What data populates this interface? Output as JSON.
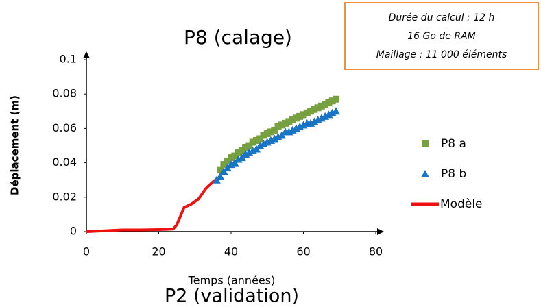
{
  "chart_data": {
    "type": "scatter",
    "title": "P8 (calage)",
    "x_label": "Temps (années)",
    "y_label": "Déplacement (m)",
    "xlim": [
      0,
      80
    ],
    "xticks": [
      0,
      20,
      40,
      60,
      80
    ],
    "ylim": [
      0,
      0.1
    ],
    "yticks": [
      0,
      0.02,
      0.04,
      0.06,
      0.08,
      0.1
    ],
    "annotations": [
      "Durée du calcul : 12 h",
      "16 Go de RAM",
      "Maillage : 11 000 éléments"
    ],
    "series": [
      {
        "name": "P8 a",
        "color": "#77a040",
        "marker": "square",
        "x": [
          37,
          38,
          39,
          40,
          41,
          42,
          43,
          44,
          45,
          46,
          47,
          48,
          49,
          50,
          51,
          52,
          53,
          54,
          55,
          56,
          57,
          58,
          59,
          60,
          61,
          62,
          63,
          64,
          65,
          66,
          67,
          68,
          69
        ],
        "values": [
          0.036,
          0.039,
          0.041,
          0.043,
          0.044,
          0.046,
          0.047,
          0.049,
          0.05,
          0.052,
          0.053,
          0.054,
          0.056,
          0.057,
          0.058,
          0.059,
          0.061,
          0.062,
          0.063,
          0.064,
          0.065,
          0.066,
          0.067,
          0.068,
          0.069,
          0.07,
          0.071,
          0.072,
          0.073,
          0.074,
          0.075,
          0.076,
          0.077
        ]
      },
      {
        "name": "P8 b",
        "color": "#1a74c4",
        "marker": "triangle",
        "x": [
          36,
          37,
          38,
          39,
          40,
          41,
          42,
          43,
          44,
          45,
          46,
          47,
          48,
          49,
          50,
          51,
          52,
          53,
          54,
          55,
          56,
          57,
          58,
          59,
          60,
          61,
          62,
          63,
          64,
          65,
          66,
          67,
          68,
          69
        ],
        "values": [
          0.03,
          0.032,
          0.035,
          0.037,
          0.039,
          0.04,
          0.042,
          0.043,
          0.045,
          0.046,
          0.047,
          0.048,
          0.05,
          0.051,
          0.052,
          0.053,
          0.054,
          0.055,
          0.056,
          0.058,
          0.058,
          0.059,
          0.06,
          0.061,
          0.062,
          0.063,
          0.063,
          0.064,
          0.065,
          0.066,
          0.067,
          0.068,
          0.069,
          0.07
        ]
      },
      {
        "name": "Modèle",
        "color": "#ee1111",
        "marker": "line",
        "x": [
          0,
          5,
          10,
          15,
          20,
          24,
          25,
          27,
          29,
          31,
          33,
          35,
          37
        ],
        "values": [
          0,
          0.0005,
          0.001,
          0.001,
          0.0012,
          0.0015,
          0.004,
          0.014,
          0.016,
          0.019,
          0.025,
          0.029,
          0.032
        ]
      }
    ]
  },
  "footer_title": "P2 (validation)"
}
